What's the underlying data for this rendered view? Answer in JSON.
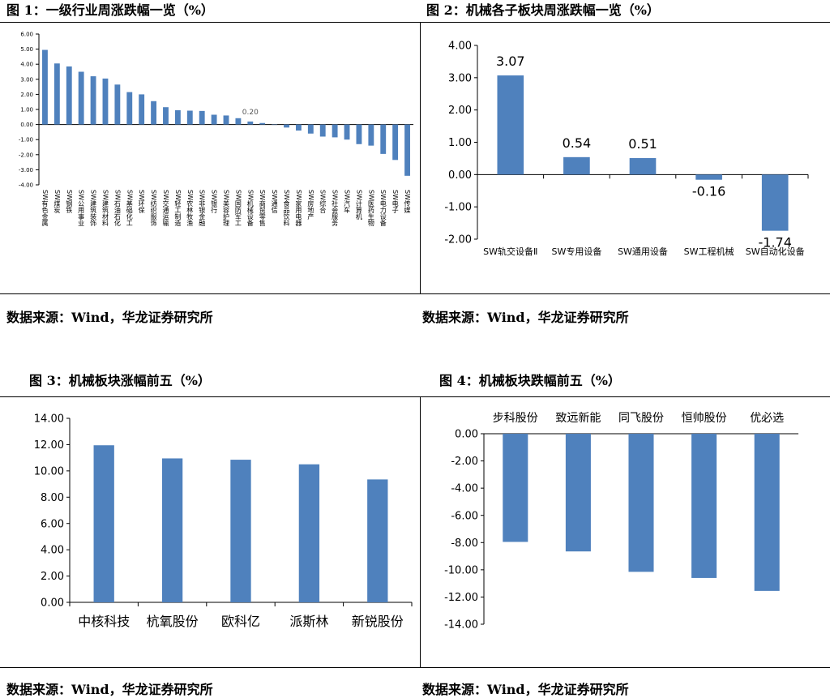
{
  "figures": [
    {
      "title": "图 1：一级行业周涨跌幅一览（%）",
      "source": "数据来源：Wind，华龙证券研究所"
    },
    {
      "title": "图 2：机械各子板块周涨跌幅一览（%）",
      "source": "数据来源：Wind，华龙证券研究所"
    },
    {
      "title": "图 3：机械板块涨幅前五（%）",
      "source": "数据来源：Wind，华龙证券研究所"
    },
    {
      "title": "图 4：机械板块跌幅前五（%）",
      "source": "数据来源：Wind，华龙证券研究所"
    }
  ],
  "chart_data": [
    {
      "type": "bar",
      "title": "图 1：一级行业周涨跌幅一览（%）",
      "categories": [
        "SW有色金属",
        "SW煤炭",
        "SW钢铁",
        "SW公用事业",
        "SW建筑装饰",
        "SW建筑材料",
        "SW石油石化",
        "SW基础化工",
        "SW环保",
        "SW纺织服饰",
        "SW交通运输",
        "SW轻工制造",
        "SW农林牧渔",
        "SW非银金融",
        "SW银行",
        "SW美容护理",
        "SW国防军工",
        "SW机械设备",
        "SW商贸零售",
        "SW通信",
        "SW食品饮料",
        "SW家用电器",
        "SW房地产",
        "SW综合",
        "SW社会服务",
        "SW汽车",
        "SW计算机",
        "SW医药生物",
        "SW电力设备",
        "SW电子",
        "SW传媒"
      ],
      "values": [
        4.95,
        4.05,
        3.85,
        3.5,
        3.2,
        3.05,
        2.65,
        2.15,
        2.0,
        1.55,
        1.15,
        0.95,
        0.92,
        0.9,
        0.65,
        0.6,
        0.42,
        0.2,
        0.1,
        0.0,
        -0.2,
        -0.4,
        -0.6,
        -0.8,
        -0.85,
        -1.0,
        -1.3,
        -1.4,
        -1.95,
        -2.35,
        -3.4
      ],
      "labeled_value": "0.20",
      "ylim": [
        -4,
        6
      ],
      "yticks": [
        "6.00",
        "5.00",
        "4.00",
        "3.00",
        "2.00",
        "1.00",
        "0.00",
        "-1.00",
        "-2.00",
        "-3.00",
        "-4.00"
      ],
      "color": "#4f81bd"
    },
    {
      "type": "bar",
      "title": "图 2：机械各子板块周涨跌幅一览（%）",
      "categories": [
        "SW轨交设备Ⅱ",
        "SW专用设备",
        "SW通用设备",
        "SW工程机械",
        "SW自动化设备"
      ],
      "values": [
        3.07,
        0.54,
        0.51,
        -0.16,
        -1.74
      ],
      "data_labels": [
        "3.07",
        "0.54",
        "0.51",
        "-0.16",
        "-1.74"
      ],
      "ylim": [
        -2,
        4
      ],
      "yticks": [
        "4.00",
        "3.00",
        "2.00",
        "1.00",
        "0.00",
        "-1.00",
        "-2.00"
      ],
      "color": "#4f81bd"
    },
    {
      "type": "bar",
      "title": "图 3：机械板块涨幅前五（%）",
      "categories": [
        "中核科技",
        "杭氧股份",
        "欧科亿",
        "派斯林",
        "新锐股份"
      ],
      "values": [
        11.95,
        10.95,
        10.85,
        10.5,
        9.35
      ],
      "ylim": [
        0,
        14
      ],
      "yticks": [
        "14.00",
        "12.00",
        "10.00",
        "8.00",
        "6.00",
        "4.00",
        "2.00",
        "0.00"
      ],
      "color": "#4f81bd"
    },
    {
      "type": "bar",
      "title": "图 4：机械板块跌幅前五（%）",
      "categories": [
        "步科股份",
        "致远新能",
        "同飞股份",
        "恒帅股份",
        "优必选"
      ],
      "values": [
        -7.95,
        -8.65,
        -10.15,
        -10.6,
        -11.55
      ],
      "ylim": [
        -14,
        0
      ],
      "yticks": [
        "0.00",
        "-2.00",
        "-4.00",
        "-6.00",
        "-8.00",
        "-10.00",
        "-12.00",
        "-14.00"
      ],
      "color": "#4f81bd"
    }
  ]
}
